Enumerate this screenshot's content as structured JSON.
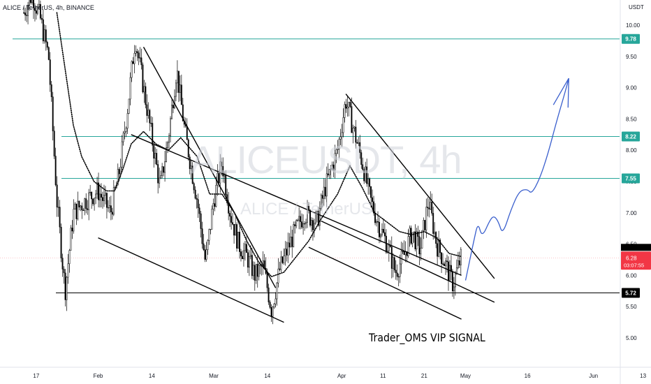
{
  "header": {
    "symbol_title": "ALICE / TetherUS, 4h, BINANCE",
    "currency": "USDT"
  },
  "watermark": {
    "main": "ALICEUSDT, 4h",
    "sub": "ALICE / TetherUS"
  },
  "annotation": "Trader_OMS VIP SIGNAL",
  "colors": {
    "candles": "#000000",
    "level_lines": "#26a69a",
    "level_label_bg": "#26a69a",
    "support_line": "#000000",
    "current_price_bg": "#f23645",
    "projection_line": "#3a5fcd",
    "moving_average": "#000000"
  },
  "chart_data": {
    "type": "candlestick",
    "timeframe": "4h",
    "y_axis": {
      "ylim": [
        4.55,
        10.45
      ],
      "tick_labels": [
        "10.00",
        "9.50",
        "9.00",
        "8.50",
        "8.00",
        "7.50",
        "7.00",
        "6.50",
        "6.00",
        "5.50",
        "5.00"
      ],
      "position": "right"
    },
    "x_axis": {
      "tick_labels": [
        "17",
        "Feb",
        "14",
        "Mar",
        "14",
        "Apr",
        "11",
        "21",
        "May",
        "16",
        "Jun",
        "13"
      ]
    },
    "horizontal_levels": [
      {
        "value": 9.78,
        "label": "9.78"
      },
      {
        "value": 8.22,
        "label": "8.22"
      },
      {
        "value": 7.55,
        "label": "7.55"
      },
      {
        "value": 5.72,
        "label": "5.72"
      }
    ],
    "current_price": {
      "value": 6.28,
      "label": "6.28",
      "countdown": "03:07:55"
    },
    "price_path_points": [
      {
        "date": "Jan 14",
        "price": 10.2
      },
      {
        "date": "Jan 16",
        "price": 10.5
      },
      {
        "date": "Jan 18",
        "price": 10.1
      },
      {
        "date": "Jan 20",
        "price": 9.5
      },
      {
        "date": "Jan 22",
        "price": 7.2
      },
      {
        "date": "Jan 24",
        "price": 5.75
      },
      {
        "date": "Jan 26",
        "price": 7.0
      },
      {
        "date": "Jan 29",
        "price": 7.2
      },
      {
        "date": "Feb 1",
        "price": 7.35
      },
      {
        "date": "Feb 4",
        "price": 7.0
      },
      {
        "date": "Feb 6",
        "price": 7.6
      },
      {
        "date": "Feb 8",
        "price": 8.6
      },
      {
        "date": "Feb 10",
        "price": 9.8
      },
      {
        "date": "Feb 12",
        "price": 9.0
      },
      {
        "date": "Feb 14",
        "price": 8.2
      },
      {
        "date": "Feb 16",
        "price": 7.4
      },
      {
        "date": "Feb 18",
        "price": 8.2
      },
      {
        "date": "Feb 20",
        "price": 9.3
      },
      {
        "date": "Feb 22",
        "price": 8.3
      },
      {
        "date": "Feb 25",
        "price": 7.2
      },
      {
        "date": "Feb 27",
        "price": 6.2
      },
      {
        "date": "Mar 1",
        "price": 7.2
      },
      {
        "date": "Mar 3",
        "price": 7.8
      },
      {
        "date": "Mar 5",
        "price": 7.0
      },
      {
        "date": "Mar 7",
        "price": 6.5
      },
      {
        "date": "Mar 9",
        "price": 6.3
      },
      {
        "date": "Mar 11",
        "price": 6.0
      },
      {
        "date": "Mar 13",
        "price": 6.15
      },
      {
        "date": "Mar 15",
        "price": 5.45
      },
      {
        "date": "Mar 17",
        "price": 6.1
      },
      {
        "date": "Mar 20",
        "price": 6.6
      },
      {
        "date": "Mar 23",
        "price": 7.0
      },
      {
        "date": "Mar 26",
        "price": 6.85
      },
      {
        "date": "Mar 28",
        "price": 7.4
      },
      {
        "date": "Mar 31",
        "price": 8.0
      },
      {
        "date": "Apr 2",
        "price": 8.8
      },
      {
        "date": "Apr 4",
        "price": 8.3
      },
      {
        "date": "Apr 6",
        "price": 7.8
      },
      {
        "date": "Apr 8",
        "price": 7.2
      },
      {
        "date": "Apr 10",
        "price": 6.8
      },
      {
        "date": "Apr 12",
        "price": 6.5
      },
      {
        "date": "Apr 14",
        "price": 6.05
      },
      {
        "date": "Apr 16",
        "price": 6.3
      },
      {
        "date": "Apr 18",
        "price": 6.7
      },
      {
        "date": "Apr 20",
        "price": 6.4
      },
      {
        "date": "Apr 22",
        "price": 7.2
      },
      {
        "date": "Apr 24",
        "price": 6.5
      },
      {
        "date": "Apr 26",
        "price": 6.2
      },
      {
        "date": "Apr 28",
        "price": 5.85
      },
      {
        "date": "Apr 29",
        "price": 6.1
      },
      {
        "date": "Apr 30",
        "price": 6.3
      }
    ],
    "moving_average_points": [
      {
        "date": "Jan 22",
        "price": 10.2
      },
      {
        "date": "Jan 24",
        "price": 9.3
      },
      {
        "date": "Jan 26",
        "price": 8.4
      },
      {
        "date": "Jan 28",
        "price": 7.9
      },
      {
        "date": "Jan 31",
        "price": 7.5
      },
      {
        "date": "Feb 3",
        "price": 7.35
      },
      {
        "date": "Feb 5",
        "price": 7.35
      },
      {
        "date": "Feb 7",
        "price": 7.7
      },
      {
        "date": "Feb 9",
        "price": 8.1
      },
      {
        "date": "Feb 12",
        "price": 8.3
      },
      {
        "date": "Feb 15",
        "price": 8.1
      },
      {
        "date": "Feb 18",
        "price": 8.0
      },
      {
        "date": "Feb 21",
        "price": 8.2
      },
      {
        "date": "Feb 25",
        "price": 7.9
      },
      {
        "date": "Feb 28",
        "price": 7.3
      },
      {
        "date": "Mar 3",
        "price": 7.3
      },
      {
        "date": "Mar 6",
        "price": 7.0
      },
      {
        "date": "Mar 9",
        "price": 6.55
      },
      {
        "date": "Mar 12",
        "price": 6.2
      },
      {
        "date": "Mar 15",
        "price": 5.98
      },
      {
        "date": "Mar 18",
        "price": 6.05
      },
      {
        "date": "Mar 21",
        "price": 6.3
      },
      {
        "date": "Mar 24",
        "price": 6.55
      },
      {
        "date": "Mar 27",
        "price": 6.9
      },
      {
        "date": "Mar 31",
        "price": 7.3
      },
      {
        "date": "Apr 3",
        "price": 7.75
      },
      {
        "date": "Apr 6",
        "price": 7.4
      },
      {
        "date": "Apr 9",
        "price": 7.0
      },
      {
        "date": "Apr 12",
        "price": 6.85
      },
      {
        "date": "Apr 15",
        "price": 6.7
      },
      {
        "date": "Apr 18",
        "price": 6.65
      },
      {
        "date": "Apr 21",
        "price": 6.7
      },
      {
        "date": "Apr 24",
        "price": 6.6
      },
      {
        "date": "Apr 27",
        "price": 6.35
      },
      {
        "date": "Apr 30",
        "price": 6.3
      }
    ],
    "trendlines": [
      {
        "name": "channel-1-upper",
        "from": {
          "date": "Feb 12",
          "price": 9.65
        },
        "to": {
          "date": "Mar 16",
          "price": 5.8
        }
      },
      {
        "name": "channel-1-mid",
        "from": {
          "date": "Feb 9",
          "price": 8.25
        },
        "to": {
          "date": "Apr 30",
          "price": 6.0
        }
      },
      {
        "name": "channel-1-lower",
        "from": {
          "date": "Feb 1",
          "price": 6.6
        },
        "to": {
          "date": "Mar 18",
          "price": 5.25
        }
      },
      {
        "name": "channel-2-upper",
        "from": {
          "date": "Apr 2",
          "price": 8.9
        },
        "to": {
          "date": "May 8",
          "price": 5.95
        }
      },
      {
        "name": "channel-2-mid",
        "from": {
          "date": "Mar 27",
          "price": 6.87
        },
        "to": {
          "date": "May 8",
          "price": 5.57
        }
      },
      {
        "name": "channel-2-lower",
        "from": {
          "date": "Mar 24",
          "price": 6.45
        },
        "to": {
          "date": "Apr 30",
          "price": 5.3
        }
      }
    ],
    "projection_path": [
      {
        "date": "May 1",
        "price": 5.92
      },
      {
        "date": "May 3",
        "price": 6.55
      },
      {
        "date": "May 4",
        "price": 6.85
      },
      {
        "date": "May 5",
        "price": 6.6
      },
      {
        "date": "May 7",
        "price": 6.9
      },
      {
        "date": "May 8",
        "price": 6.95
      },
      {
        "date": "May 9",
        "price": 6.85
      },
      {
        "date": "May 10",
        "price": 6.65
      },
      {
        "date": "May 12",
        "price": 7.05
      },
      {
        "date": "May 14",
        "price": 7.35
      },
      {
        "date": "May 16",
        "price": 7.38
      },
      {
        "date": "May 17",
        "price": 7.3
      },
      {
        "date": "May 19",
        "price": 7.55
      },
      {
        "date": "May 21",
        "price": 7.95
      },
      {
        "date": "May 23",
        "price": 8.45
      },
      {
        "date": "May 25",
        "price": 8.9
      },
      {
        "date": "May 26",
        "price": 9.15
      }
    ]
  }
}
